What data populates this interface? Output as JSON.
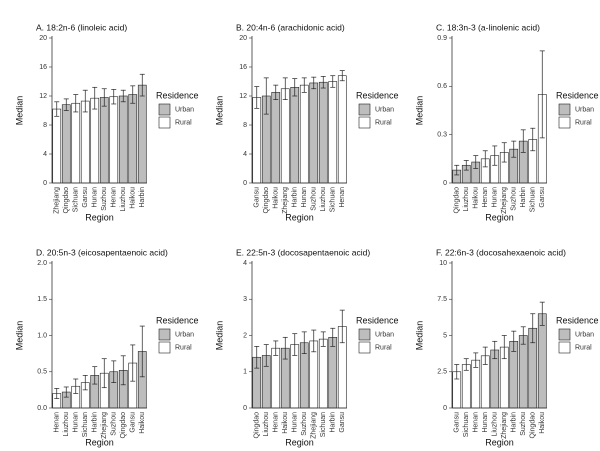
{
  "chart_data": [
    {
      "type": "bar",
      "title": "A. 18:2n-6 (linoleic acid)",
      "x_label": "Region",
      "y_label": "Median",
      "legend_title": "Residence",
      "categories": [
        "Zhejiang",
        "Qingdao",
        "Sichuan",
        "Gansu",
        "Hunan",
        "Suzhou",
        "Henan",
        "Liuzhou",
        "Haikou",
        "Harbin"
      ],
      "series": [
        {
          "name": "Urban",
          "color": "#bdbdbd",
          "values": [
            null,
            10.8,
            null,
            null,
            null,
            11.8,
            null,
            12.0,
            12.2,
            13.5
          ],
          "errors": [
            null,
            0.8,
            null,
            null,
            null,
            1.2,
            null,
            0.8,
            1.2,
            1.5
          ]
        },
        {
          "name": "Rural",
          "color": "#ffffff",
          "values": [
            10.2,
            null,
            11.0,
            11.3,
            11.7,
            null,
            11.9,
            null,
            null,
            null
          ],
          "errors": [
            1.0,
            null,
            1.2,
            1.5,
            1.5,
            null,
            1.0,
            null,
            null,
            null
          ]
        }
      ],
      "ylim": [
        0,
        20
      ],
      "yticks": [
        0,
        4,
        8,
        12,
        16,
        20
      ]
    },
    {
      "type": "bar",
      "title": "B. 20:4n-6 (arachidonic acid)",
      "x_label": "Region",
      "y_label": "Median",
      "legend_title": "Residence",
      "categories": [
        "Gansu",
        "Qingdao",
        "Haikou",
        "Zhejiang",
        "Harbin",
        "Hunan",
        "Suzhou",
        "Liuzhou",
        "Sichuan",
        "Henan"
      ],
      "series": [
        {
          "name": "Urban",
          "color": "#bdbdbd",
          "values": [
            null,
            12.0,
            12.5,
            null,
            13.2,
            null,
            13.8,
            13.9,
            null,
            null
          ],
          "errors": [
            null,
            2.5,
            1.0,
            null,
            1.2,
            null,
            0.8,
            0.8,
            null,
            null
          ]
        },
        {
          "name": "Rural",
          "color": "#ffffff",
          "values": [
            11.8,
            null,
            null,
            13.0,
            null,
            13.5,
            null,
            null,
            14.0,
            14.8
          ],
          "errors": [
            1.5,
            null,
            null,
            1.5,
            null,
            1.0,
            null,
            null,
            0.8,
            0.7
          ]
        }
      ],
      "ylim": [
        0,
        20
      ],
      "yticks": [
        0,
        4,
        8,
        12,
        16,
        20
      ]
    },
    {
      "type": "bar",
      "title": "C. 18:3n-3 (a-linolenic acid)",
      "x_label": "Region",
      "y_label": "Median",
      "legend_title": "Residence",
      "categories": [
        "Qingdao",
        "Liuzhou",
        "Haikou",
        "Henan",
        "Hunan",
        "Zhejiang",
        "Suzhou",
        "Harbin",
        "Sichuan",
        "Gansu"
      ],
      "series": [
        {
          "name": "Urban",
          "color": "#bdbdbd",
          "values": [
            0.08,
            0.11,
            0.13,
            null,
            null,
            null,
            0.21,
            0.26,
            null,
            null
          ],
          "errors": [
            0.03,
            0.03,
            0.04,
            null,
            null,
            null,
            0.05,
            0.07,
            null,
            null
          ]
        },
        {
          "name": "Rural",
          "color": "#ffffff",
          "values": [
            null,
            null,
            null,
            0.15,
            0.17,
            0.19,
            null,
            null,
            0.27,
            0.55
          ],
          "errors": [
            null,
            null,
            null,
            0.05,
            0.06,
            0.06,
            null,
            null,
            0.07,
            0.27
          ]
        }
      ],
      "ylim": [
        0,
        0.9
      ],
      "yticks": [
        0,
        0.3,
        0.6,
        0.9
      ]
    },
    {
      "type": "bar",
      "title": "D. 20:5n-3 (eicosapentaenoic acid)",
      "x_label": "Region",
      "y_label": "Median",
      "legend_title": "Residence",
      "categories": [
        "Henan",
        "Liuzhou",
        "Hunan",
        "Sichuan",
        "Harbin",
        "Zhejiang",
        "Suzhou",
        "Qingdao",
        "Gansu",
        "Haikou"
      ],
      "series": [
        {
          "name": "Urban",
          "color": "#bdbdbd",
          "values": [
            null,
            0.22,
            null,
            null,
            0.45,
            null,
            0.5,
            0.52,
            null,
            0.78
          ],
          "errors": [
            null,
            0.07,
            null,
            null,
            0.12,
            null,
            0.15,
            0.2,
            null,
            0.35
          ]
        },
        {
          "name": "Rural",
          "color": "#ffffff",
          "values": [
            0.2,
            null,
            0.3,
            0.35,
            null,
            0.48,
            null,
            null,
            0.62,
            null
          ],
          "errors": [
            0.07,
            null,
            0.1,
            0.1,
            null,
            0.2,
            null,
            null,
            0.25,
            null
          ]
        }
      ],
      "ylim": [
        0,
        2
      ],
      "yticks": [
        {
          "value": 0,
          "label": "0.0"
        },
        0.5,
        {
          "value": 1,
          "label": "1.0"
        },
        1.5,
        {
          "value": 2,
          "label": "2.0"
        }
      ]
    },
    {
      "type": "bar",
      "title": "E. 22:5n-3 (docosapentaenoic acid)",
      "x_label": "Region",
      "y_label": "Median",
      "legend_title": "Residence",
      "categories": [
        "Qingdao",
        "Liuzhou",
        "Henan",
        "Haikou",
        "Hunan",
        "Suzhou",
        "Zhejiang",
        "Sichuan",
        "Harbin",
        "Gansu"
      ],
      "series": [
        {
          "name": "Urban",
          "color": "#bdbdbd",
          "values": [
            1.4,
            1.45,
            null,
            1.65,
            null,
            1.8,
            null,
            null,
            1.95,
            null
          ],
          "errors": [
            0.3,
            0.3,
            null,
            0.3,
            null,
            0.3,
            null,
            null,
            0.25,
            null
          ]
        },
        {
          "name": "Rural",
          "color": "#ffffff",
          "values": [
            null,
            null,
            1.65,
            null,
            1.75,
            null,
            1.85,
            1.9,
            null,
            2.25
          ],
          "errors": [
            null,
            null,
            0.2,
            null,
            0.3,
            null,
            0.3,
            0.2,
            null,
            0.45
          ]
        }
      ],
      "ylim": [
        0,
        4
      ],
      "yticks": [
        0,
        1,
        2,
        3,
        4
      ]
    },
    {
      "type": "bar",
      "title": "F. 22:6n-3 (docosahexaenoic acid)",
      "x_label": "Region",
      "y_label": "Median",
      "legend_title": "Residence",
      "categories": [
        "Gansu",
        "Sichuan",
        "Henan",
        "Hunan",
        "Liuzhou",
        "Zhejiang",
        "Harbin",
        "Suzhou",
        "Qingdao",
        "Haikou"
      ],
      "series": [
        {
          "name": "Urban",
          "color": "#bdbdbd",
          "values": [
            null,
            null,
            null,
            null,
            4.0,
            null,
            4.6,
            5.0,
            5.5,
            6.5
          ],
          "errors": [
            null,
            null,
            null,
            null,
            0.6,
            null,
            0.7,
            0.6,
            1.0,
            0.8
          ]
        },
        {
          "name": "Rural",
          "color": "#ffffff",
          "values": [
            2.5,
            3.0,
            3.3,
            3.6,
            null,
            4.2,
            null,
            null,
            null,
            null
          ],
          "errors": [
            0.5,
            0.4,
            0.5,
            0.6,
            null,
            0.8,
            null,
            null,
            null,
            null
          ]
        }
      ],
      "ylim": [
        0,
        10
      ],
      "yticks": [
        0,
        2.5,
        5,
        7.5,
        10
      ]
    }
  ]
}
